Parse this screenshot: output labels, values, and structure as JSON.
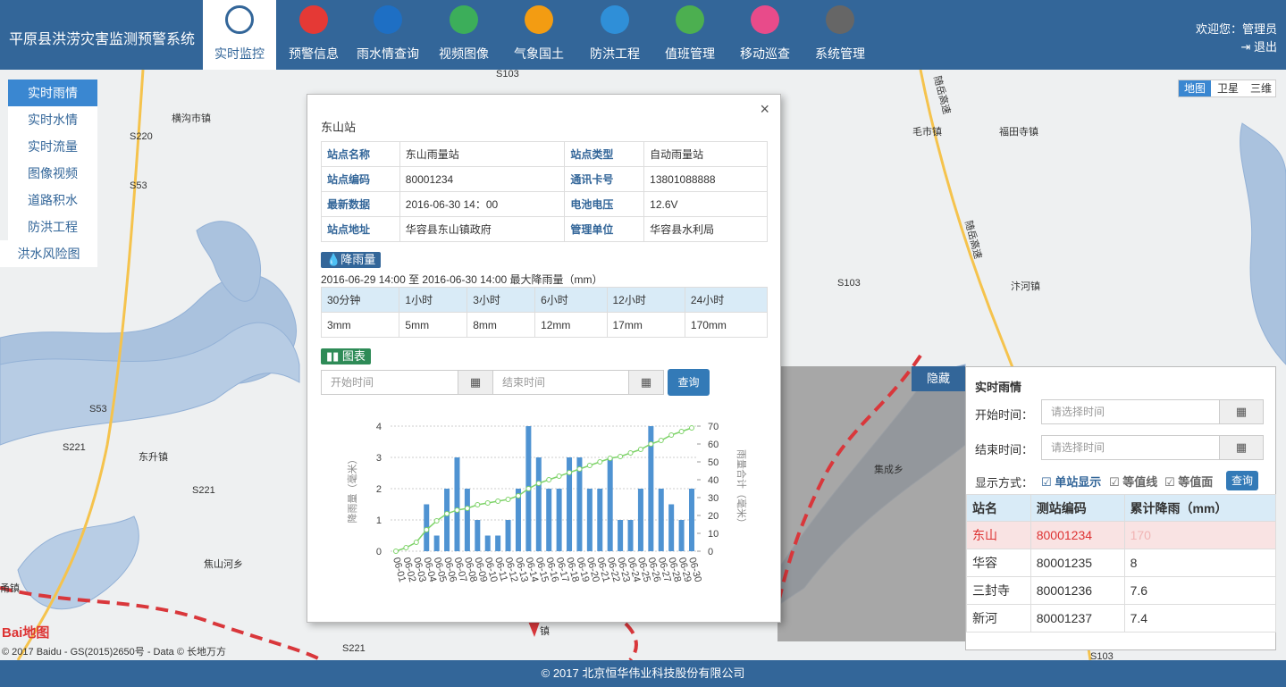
{
  "header": {
    "title": "平原县洪涝灾害监测预警系统",
    "nav": [
      "实时监控",
      "预警信息",
      "雨水情查询",
      "视频图像",
      "气象国土",
      "防洪工程",
      "值班管理",
      "移动巡查",
      "系统管理"
    ],
    "welcome": "欢迎您：管理员",
    "logout": "退出"
  },
  "sidebar": {
    "items": [
      "实时雨情",
      "实时水情",
      "实时流量",
      "图像视频",
      "道路积水",
      "防洪工程",
      "洪水风险图"
    ]
  },
  "map": {
    "type_buttons": [
      "地图",
      "卫星",
      "三维"
    ],
    "labels": [
      "横沟市镇",
      "S220",
      "S53",
      "S53",
      "S221",
      "东升镇",
      "S221",
      "焦山河乡",
      "S103",
      "毛市镇",
      "福田寺镇",
      "S103",
      "汴河镇",
      "集成乡",
      "S221",
      "S103",
      "随岳高速",
      "随岳高速",
      "甬镇",
      "镇"
    ],
    "logo": "Bai地图",
    "copyright": "© 2017 Baidu - GS(2015)2650号 - Data © 长地万方"
  },
  "popup": {
    "title": "东山站",
    "close": "×",
    "info": [
      [
        "站点名称",
        "东山雨量站",
        "站点类型",
        "自动雨量站"
      ],
      [
        "站点编码",
        "80001234",
        "通讯卡号",
        "13801088888"
      ],
      [
        "最新数据",
        "2016-06-30 14：00",
        "电池电压",
        "12.6V"
      ],
      [
        "站点地址",
        "华容县东山镇政府",
        "管理单位",
        "华容县水利局"
      ]
    ],
    "rain_badge": "降雨量",
    "rain_range": "2016-06-29 14:00 至 2016-06-30 14:00 最大降雨量（mm）",
    "rain_table": {
      "header": [
        "30分钟",
        "1小时",
        "3小时",
        "6小时",
        "12小时",
        "24小时"
      ],
      "row": [
        "3mm",
        "5mm",
        "8mm",
        "12mm",
        "17mm",
        "170mm"
      ]
    },
    "chart_badge": "图表",
    "start_placeholder": "开始时间",
    "end_placeholder": "结束时间",
    "query": "查询"
  },
  "chart_data": {
    "type": "bar",
    "ylabel": "降雨量（毫米）",
    "y2label": "雨量合计（毫米）",
    "categories": [
      "06-01",
      "06-02",
      "06-03",
      "06-04",
      "06-05",
      "06-06",
      "06-07",
      "06-08",
      "06-09",
      "06-10",
      "06-11",
      "06-12",
      "06-13",
      "06-14",
      "06-15",
      "06-16",
      "06-17",
      "06-18",
      "06-19",
      "06-20",
      "06-21",
      "06-22",
      "06-23",
      "06-24",
      "06-25",
      "06-26",
      "06-27",
      "06-28",
      "06-29",
      "06-30"
    ],
    "series": [
      {
        "type": "bar",
        "color": "#4f93d2",
        "values": [
          0,
          0,
          0,
          1.5,
          0.5,
          2,
          3,
          2,
          1,
          0.5,
          0.5,
          1,
          2,
          4,
          3,
          2,
          2,
          3,
          3,
          2,
          2,
          3,
          1,
          1,
          2,
          4,
          2,
          1.5,
          1,
          2
        ]
      },
      {
        "type": "line",
        "axis": "y2",
        "color": "#7fd36a",
        "values": [
          0,
          2,
          5,
          12,
          17,
          21,
          23,
          24,
          26,
          27,
          28,
          29,
          31,
          35,
          38,
          40,
          42,
          44,
          46,
          48,
          50,
          52,
          53,
          55,
          57,
          60,
          62,
          65,
          67,
          69
        ]
      }
    ],
    "ylim": [
      0,
      4
    ],
    "yticks": [
      0,
      1,
      2,
      3,
      4
    ],
    "y2lim": [
      0,
      70
    ],
    "y2ticks": [
      0,
      10,
      20,
      30,
      40,
      50,
      60,
      70
    ],
    "grid": true
  },
  "panel": {
    "hide": "隐藏",
    "title": "实时雨情",
    "start_label": "开始时间：",
    "start_placeholder": "请选择时间",
    "end_label": "结束时间：",
    "end_placeholder": "请选择时间",
    "display_label": "显示方式：",
    "options": [
      "单站显示",
      "等值线",
      "等值面"
    ],
    "query": "查询",
    "table": {
      "header": [
        "站名",
        "测站编码",
        "累计降雨（mm）"
      ],
      "rows": [
        [
          "东山",
          "80001234",
          "170"
        ],
        [
          "华容",
          "80001235",
          "8"
        ],
        [
          "三封寺",
          "80001236",
          "7.6"
        ],
        [
          "新河",
          "80001237",
          "7.4"
        ]
      ]
    }
  },
  "footer": "© 2017 北京恒华伟业科技股份有限公司"
}
